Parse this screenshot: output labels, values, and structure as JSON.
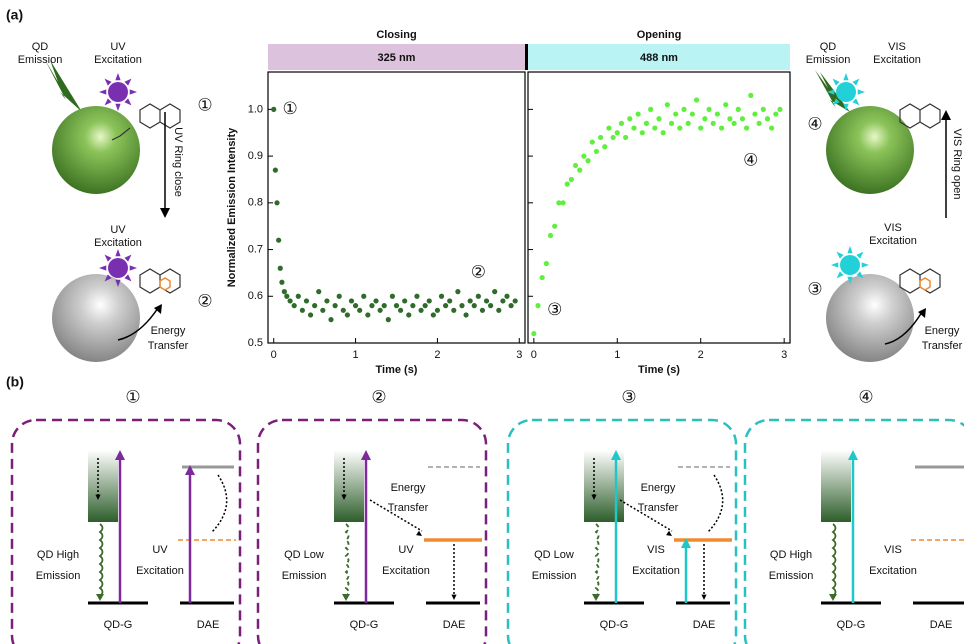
{
  "figure_labels": [
    "(a)",
    "(b)"
  ],
  "chart_data": [
    {
      "type": "scatter",
      "title": "Closing",
      "subtitle": "325 nm",
      "x_label": "Time (s)",
      "y_label": "Normalized Emission Intensity",
      "xlim": [
        -0.07,
        3.07
      ],
      "ylim": [
        0.5,
        1.08
      ],
      "xticks": [
        0,
        1,
        2,
        3
      ],
      "yticks": [
        0.5,
        0.6,
        0.7,
        0.8,
        0.9,
        {
          "value": 1,
          "label": "1.0"
        }
      ],
      "show_ytick_labels": true,
      "color": "#2f6b2a",
      "annotations": [
        "①",
        "②"
      ],
      "x": [
        0,
        0.02,
        0.04,
        0.06,
        0.08,
        0.1,
        0.13,
        0.16,
        0.2,
        0.25,
        0.3,
        0.35,
        0.4,
        0.45,
        0.5,
        0.55,
        0.6,
        0.65,
        0.7,
        0.75,
        0.8,
        0.85,
        0.9,
        0.95,
        1.0,
        1.05,
        1.1,
        1.15,
        1.2,
        1.25,
        1.3,
        1.35,
        1.4,
        1.45,
        1.5,
        1.55,
        1.6,
        1.65,
        1.7,
        1.75,
        1.8,
        1.85,
        1.9,
        1.95,
        2.0,
        2.05,
        2.1,
        2.15,
        2.2,
        2.25,
        2.3,
        2.35,
        2.4,
        2.45,
        2.5,
        2.55,
        2.6,
        2.65,
        2.7,
        2.75,
        2.8,
        2.85,
        2.9,
        2.95
      ],
      "values": [
        1.0,
        0.87,
        0.8,
        0.72,
        0.66,
        0.63,
        0.61,
        0.6,
        0.59,
        0.58,
        0.6,
        0.57,
        0.59,
        0.56,
        0.58,
        0.61,
        0.57,
        0.59,
        0.55,
        0.58,
        0.6,
        0.57,
        0.56,
        0.59,
        0.58,
        0.57,
        0.6,
        0.56,
        0.58,
        0.59,
        0.57,
        0.58,
        0.55,
        0.6,
        0.58,
        0.57,
        0.59,
        0.56,
        0.58,
        0.6,
        0.57,
        0.58,
        0.59,
        0.56,
        0.57,
        0.6,
        0.58,
        0.59,
        0.57,
        0.61,
        0.58,
        0.56,
        0.59,
        0.58,
        0.6,
        0.57,
        0.59,
        0.58,
        0.61,
        0.57,
        0.59,
        0.6,
        0.58,
        0.59
      ]
    },
    {
      "type": "scatter",
      "title": "Opening",
      "subtitle": "488 nm",
      "x_label": "Time (s)",
      "xlim": [
        -0.07,
        3.07
      ],
      "ylim": [
        0.5,
        1.08
      ],
      "xticks": [
        0,
        1,
        2,
        3
      ],
      "yticks": [
        0.5,
        0.6,
        0.7,
        0.8,
        0.9,
        1
      ],
      "show_ytick_labels": false,
      "color": "#5ef03c",
      "annotations": [
        "④",
        "③"
      ],
      "x": [
        0,
        0.05,
        0.1,
        0.15,
        0.2,
        0.25,
        0.3,
        0.35,
        0.4,
        0.45,
        0.5,
        0.55,
        0.6,
        0.65,
        0.7,
        0.75,
        0.8,
        0.85,
        0.9,
        0.95,
        1.0,
        1.05,
        1.1,
        1.15,
        1.2,
        1.25,
        1.3,
        1.35,
        1.4,
        1.45,
        1.5,
        1.55,
        1.6,
        1.65,
        1.7,
        1.75,
        1.8,
        1.85,
        1.9,
        1.95,
        2.0,
        2.05,
        2.1,
        2.15,
        2.2,
        2.25,
        2.3,
        2.35,
        2.4,
        2.45,
        2.5,
        2.55,
        2.6,
        2.65,
        2.7,
        2.75,
        2.8,
        2.85,
        2.9,
        2.95
      ],
      "values": [
        0.52,
        0.58,
        0.64,
        0.67,
        0.73,
        0.75,
        0.8,
        0.8,
        0.84,
        0.85,
        0.88,
        0.87,
        0.9,
        0.89,
        0.93,
        0.91,
        0.94,
        0.92,
        0.96,
        0.94,
        0.95,
        0.97,
        0.94,
        0.98,
        0.96,
        0.99,
        0.95,
        0.97,
        1.0,
        0.96,
        0.98,
        0.95,
        1.01,
        0.97,
        0.99,
        0.96,
        1.0,
        0.97,
        0.99,
        1.02,
        0.96,
        0.98,
        1.0,
        0.97,
        0.99,
        0.96,
        1.01,
        0.98,
        0.97,
        1.0,
        0.98,
        0.96,
        1.03,
        0.99,
        0.97,
        1.0,
        0.98,
        0.96,
        0.99,
        1.0
      ]
    }
  ],
  "schematic_a": {
    "left": {
      "qd_emission": [
        "QD",
        "Emission"
      ],
      "excitation_top": [
        "UV",
        "Excitation"
      ],
      "step_top": "①",
      "ring": "UV Ring close",
      "excitation_bottom": [
        "UV",
        "Excitation"
      ],
      "step_bottom": "②",
      "transfer": [
        "Energy",
        "Transfer"
      ]
    },
    "right": {
      "qd_emission": [
        "QD",
        "Emission"
      ],
      "excitation_top": [
        "VIS",
        "Excitation"
      ],
      "step_top": "④",
      "ring": "VIS Ring open",
      "excitation_bottom": [
        "VIS",
        "Excitation"
      ],
      "step_bottom": "③",
      "transfer": [
        "Energy",
        "Transfer"
      ]
    }
  },
  "panel_b": [
    {
      "step": "①",
      "emission": [
        "QD High",
        "Emission"
      ],
      "excitation": [
        "UV",
        "Excitation"
      ],
      "qd": "QD-G",
      "dae": "DAE"
    },
    {
      "step": "②",
      "transfer": [
        "Energy",
        "Transfer"
      ],
      "emission": [
        "QD Low",
        "Emission"
      ],
      "excitation": [
        "UV",
        "Excitation"
      ],
      "qd": "QD-G",
      "dae": "DAE"
    },
    {
      "step": "③",
      "transfer": [
        "Energy",
        "Transfer"
      ],
      "emission": [
        "QD Low",
        "Emission"
      ],
      "excitation": [
        "VIS",
        "Excitation"
      ],
      "qd": "QD-G",
      "dae": "DAE"
    },
    {
      "step": "④",
      "emission": [
        "QD High",
        "Emission"
      ],
      "excitation": [
        "VIS",
        "Excitation"
      ],
      "qd": "QD-G",
      "dae": "DAE"
    }
  ]
}
